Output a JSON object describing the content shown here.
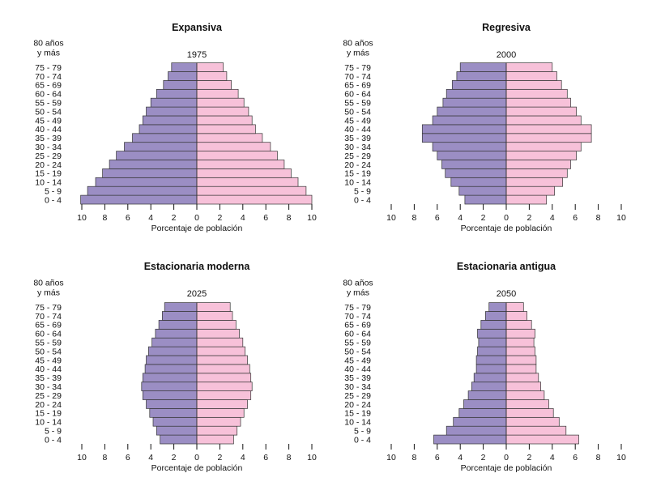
{
  "chart_data": [
    {
      "type": "bar",
      "title": "Expansiva",
      "subtitle": "1975",
      "xlabel": "Porcentaje de población",
      "top_age_label": [
        "80 años",
        "y más"
      ],
      "categories": [
        "0 - 4",
        "5 - 9",
        "10 - 14",
        "15 - 19",
        "20 - 24",
        "25 - 29",
        "30 - 34",
        "35 - 39",
        "40 - 44",
        "45 - 49",
        "50 - 54",
        "55 - 59",
        "60 - 64",
        "65 - 69",
        "70 - 74",
        "75 - 79"
      ],
      "xticks": [
        10,
        8,
        6,
        4,
        2,
        0,
        2,
        4,
        6,
        8,
        10
      ],
      "xlim": [
        -10,
        10
      ],
      "series": [
        {
          "values": [
            -10.1,
            -9.5,
            -8.8,
            -8.2,
            -7.6,
            -7.0,
            -6.3,
            -5.6,
            -5.0,
            -4.7,
            -4.4,
            -4.0,
            -3.5,
            -2.9,
            -2.5,
            -2.2
          ],
          "color": "#9b8ec4"
        },
        {
          "values": [
            10.0,
            9.5,
            8.8,
            8.2,
            7.6,
            7.0,
            6.4,
            5.7,
            5.1,
            4.8,
            4.5,
            4.1,
            3.6,
            3.0,
            2.6,
            2.3
          ],
          "color": "#f7c1d9"
        }
      ]
    },
    {
      "type": "bar",
      "title": "Regresiva",
      "subtitle": "2000",
      "xlabel": "Porcentaje de población",
      "top_age_label": [
        "80 años",
        "y más"
      ],
      "categories": [
        "0 - 4",
        "5 - 9",
        "10 - 14",
        "15 - 19",
        "20 - 24",
        "25 - 29",
        "30 - 34",
        "35 - 39",
        "40 - 44",
        "45 - 49",
        "50 - 54",
        "55 - 59",
        "60 - 64",
        "65 - 69",
        "70 - 74",
        "75 - 79"
      ],
      "xticks": [
        10,
        8,
        6,
        4,
        2,
        0,
        2,
        4,
        6,
        8,
        10
      ],
      "xlim": [
        -10,
        10
      ],
      "series": [
        {
          "values": [
            -3.6,
            -4.1,
            -4.8,
            -5.3,
            -5.6,
            -6.0,
            -6.4,
            -7.3,
            -7.3,
            -6.4,
            -6.0,
            -5.5,
            -5.2,
            -4.7,
            -4.3,
            -4.0
          ],
          "color": "#9b8ec4"
        },
        {
          "values": [
            3.5,
            4.2,
            4.9,
            5.3,
            5.6,
            6.1,
            6.5,
            7.4,
            7.4,
            6.5,
            6.1,
            5.6,
            5.3,
            4.8,
            4.4,
            4.0
          ],
          "color": "#f7c1d9"
        }
      ]
    },
    {
      "type": "bar",
      "title": "Estacionaria moderna",
      "subtitle": "2025",
      "xlabel": "Porcentaje de población",
      "top_age_label": [
        "80 años",
        "y más"
      ],
      "categories": [
        "0 - 4",
        "5 - 9",
        "10 - 14",
        "15 - 19",
        "20 - 24",
        "25 - 29",
        "30 - 34",
        "35 - 39",
        "40 - 44",
        "45 - 49",
        "50 - 54",
        "55 - 59",
        "60 - 64",
        "65 - 69",
        "70 - 74",
        "75 - 79"
      ],
      "xticks": [
        10,
        8,
        6,
        4,
        2,
        0,
        2,
        4,
        6,
        8,
        10
      ],
      "xlim": [
        -10,
        10
      ],
      "series": [
        {
          "values": [
            -3.2,
            -3.5,
            -3.8,
            -4.1,
            -4.4,
            -4.7,
            -4.8,
            -4.7,
            -4.5,
            -4.4,
            -4.2,
            -3.9,
            -3.6,
            -3.3,
            -3.0,
            -2.8
          ],
          "color": "#9b8ec4"
        },
        {
          "values": [
            3.2,
            3.5,
            3.8,
            4.1,
            4.4,
            4.7,
            4.8,
            4.7,
            4.6,
            4.4,
            4.2,
            4.0,
            3.7,
            3.4,
            3.1,
            2.9
          ],
          "color": "#f7c1d9"
        }
      ]
    },
    {
      "type": "bar",
      "title": "Estacionaria antigua",
      "subtitle": "2050",
      "xlabel": "Porcentaje de población",
      "top_age_label": [
        "80 años",
        "y más"
      ],
      "categories": [
        "0 - 4",
        "5 - 9",
        "10 - 14",
        "15 - 19",
        "20 - 24",
        "25 - 29",
        "30 - 34",
        "35 - 39",
        "40 - 44",
        "45 - 49",
        "50 - 54",
        "55 - 59",
        "60 - 64",
        "65 - 69",
        "70 - 74",
        "75 - 79"
      ],
      "xticks": [
        10,
        8,
        6,
        4,
        2,
        0,
        2,
        4,
        6,
        8,
        10
      ],
      "xlim": [
        -10,
        10
      ],
      "series": [
        {
          "values": [
            -6.3,
            -5.2,
            -4.6,
            -4.1,
            -3.7,
            -3.3,
            -3.0,
            -2.8,
            -2.6,
            -2.6,
            -2.5,
            -2.4,
            -2.5,
            -2.2,
            -1.8,
            -1.5
          ],
          "color": "#9b8ec4"
        },
        {
          "values": [
            6.3,
            5.2,
            4.6,
            4.1,
            3.7,
            3.3,
            3.0,
            2.8,
            2.6,
            2.6,
            2.5,
            2.4,
            2.5,
            2.2,
            1.8,
            1.5
          ],
          "color": "#f7c1d9"
        }
      ]
    }
  ]
}
